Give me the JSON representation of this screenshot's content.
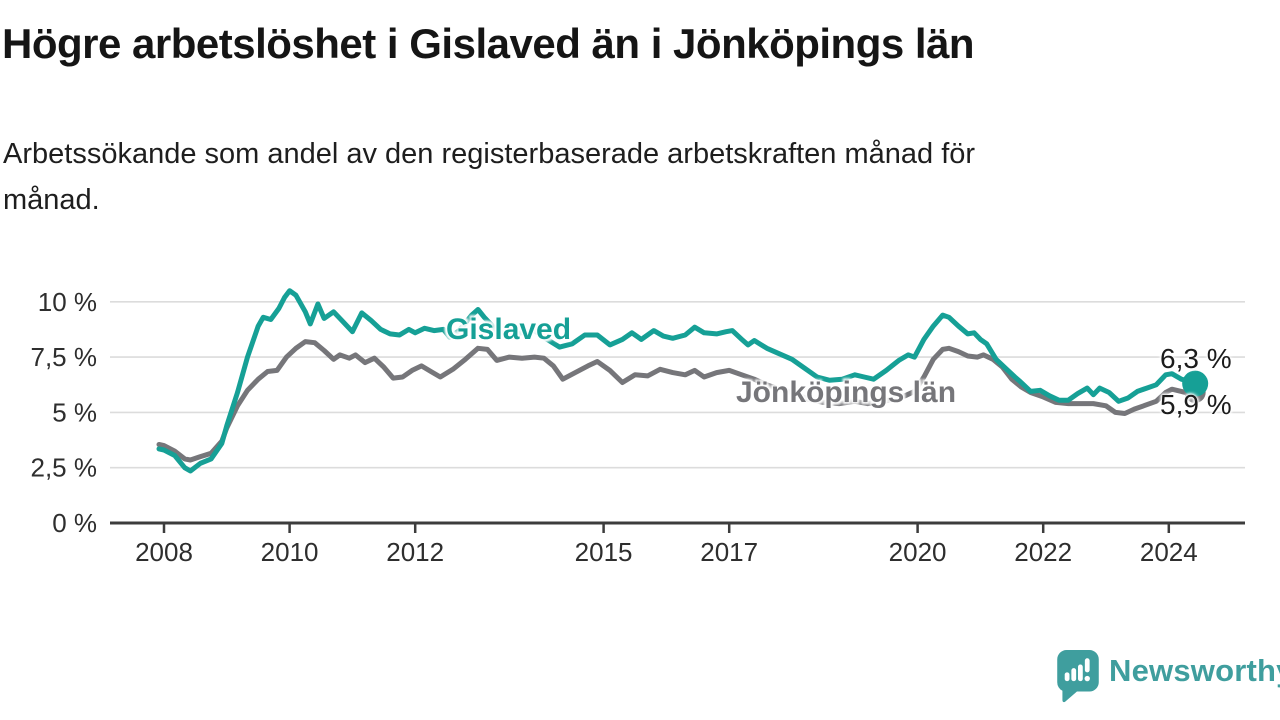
{
  "title": "Högre arbetslöshet i Gislaved än i Jönköpings län",
  "subtitle_lines": {
    "line1": "Arbetssökande som andel av den registerbaserade arbetskraften månad för",
    "line2": "månad."
  },
  "logo": {
    "text": "Newsworthy",
    "color": "#3f9e9e",
    "icon": "speech-bubble-bar-chart"
  },
  "chart_data": {
    "type": "line",
    "title": "Högre arbetslöshet i Gislaved än i Jönköpings län",
    "xlabel": "",
    "ylabel": "Arbetssökande som andel av den registerbaserade arbetskraften (%)",
    "ylim": [
      0,
      10.5
    ],
    "grid": "horizontal",
    "legend_position": "inline-labels",
    "colors": {
      "grid": "#dcdcdc",
      "axis": "#3c3c3c",
      "tick_text": "#2e2e2e"
    },
    "y_axis": {
      "ticks": [
        {
          "v": 0,
          "label": "0 %"
        },
        {
          "v": 2.5,
          "label": "2,5 %"
        },
        {
          "v": 5,
          "label": "5 %"
        },
        {
          "v": 7.5,
          "label": "7,5 %"
        },
        {
          "v": 10,
          "label": "10 %"
        }
      ]
    },
    "x_axis": {
      "ticks": [
        {
          "v": 2008,
          "label": "2008"
        },
        {
          "v": 2010,
          "label": "2010"
        },
        {
          "v": 2012,
          "label": "2012"
        },
        {
          "v": 2015,
          "label": "2015"
        },
        {
          "v": 2017,
          "label": "2017"
        },
        {
          "v": 2020,
          "label": "2020"
        },
        {
          "v": 2022,
          "label": "2022"
        },
        {
          "v": 2024,
          "label": "2024"
        }
      ]
    },
    "series": [
      {
        "name": "Gislaved",
        "label_text": "Gislaved",
        "end_label": "6,3 %",
        "end_value": 6.3,
        "color": "#16a096",
        "dot_radius": 13,
        "points": [
          [
            2007.92,
            3.35
          ],
          [
            2008.0,
            3.3
          ],
          [
            2008.17,
            3.05
          ],
          [
            2008.33,
            2.5
          ],
          [
            2008.42,
            2.35
          ],
          [
            2008.58,
            2.7
          ],
          [
            2008.75,
            2.9
          ],
          [
            2008.92,
            3.6
          ],
          [
            2009.0,
            4.4
          ],
          [
            2009.17,
            5.9
          ],
          [
            2009.33,
            7.5
          ],
          [
            2009.5,
            8.9
          ],
          [
            2009.58,
            9.3
          ],
          [
            2009.7,
            9.2
          ],
          [
            2009.83,
            9.7
          ],
          [
            2009.92,
            10.2
          ],
          [
            2010.0,
            10.5
          ],
          [
            2010.1,
            10.3
          ],
          [
            2010.25,
            9.55
          ],
          [
            2010.33,
            9.0
          ],
          [
            2010.45,
            9.9
          ],
          [
            2010.55,
            9.25
          ],
          [
            2010.7,
            9.55
          ],
          [
            2010.85,
            9.1
          ],
          [
            2011.0,
            8.65
          ],
          [
            2011.15,
            9.5
          ],
          [
            2011.3,
            9.15
          ],
          [
            2011.45,
            8.75
          ],
          [
            2011.6,
            8.55
          ],
          [
            2011.75,
            8.5
          ],
          [
            2011.9,
            8.75
          ],
          [
            2012.0,
            8.6
          ],
          [
            2012.15,
            8.8
          ],
          [
            2012.3,
            8.7
          ],
          [
            2012.45,
            8.75
          ],
          [
            2012.55,
            8.4
          ],
          [
            2012.7,
            8.7
          ],
          [
            2012.9,
            9.4
          ],
          [
            2013.0,
            9.65
          ],
          [
            2013.1,
            9.3
          ],
          [
            2013.3,
            8.7
          ],
          [
            2013.5,
            8.5
          ],
          [
            2013.7,
            8.6
          ],
          [
            2013.9,
            8.7
          ],
          [
            2014.1,
            8.3
          ],
          [
            2014.3,
            7.95
          ],
          [
            2014.5,
            8.1
          ],
          [
            2014.7,
            8.5
          ],
          [
            2014.9,
            8.5
          ],
          [
            2015.1,
            8.05
          ],
          [
            2015.3,
            8.3
          ],
          [
            2015.45,
            8.6
          ],
          [
            2015.6,
            8.3
          ],
          [
            2015.8,
            8.7
          ],
          [
            2015.95,
            8.45
          ],
          [
            2016.1,
            8.35
          ],
          [
            2016.3,
            8.5
          ],
          [
            2016.45,
            8.85
          ],
          [
            2016.6,
            8.6
          ],
          [
            2016.8,
            8.55
          ],
          [
            2016.95,
            8.65
          ],
          [
            2017.05,
            8.7
          ],
          [
            2017.2,
            8.3
          ],
          [
            2017.3,
            8.05
          ],
          [
            2017.4,
            8.25
          ],
          [
            2017.6,
            7.9
          ],
          [
            2017.8,
            7.65
          ],
          [
            2018.0,
            7.4
          ],
          [
            2018.2,
            7.0
          ],
          [
            2018.4,
            6.6
          ],
          [
            2018.6,
            6.45
          ],
          [
            2018.8,
            6.5
          ],
          [
            2019.0,
            6.7
          ],
          [
            2019.15,
            6.6
          ],
          [
            2019.3,
            6.5
          ],
          [
            2019.5,
            6.9
          ],
          [
            2019.7,
            7.35
          ],
          [
            2019.85,
            7.6
          ],
          [
            2019.95,
            7.5
          ],
          [
            2020.1,
            8.3
          ],
          [
            2020.25,
            8.9
          ],
          [
            2020.4,
            9.4
          ],
          [
            2020.5,
            9.3
          ],
          [
            2020.65,
            8.9
          ],
          [
            2020.8,
            8.55
          ],
          [
            2020.9,
            8.6
          ],
          [
            2021.0,
            8.3
          ],
          [
            2021.1,
            8.1
          ],
          [
            2021.25,
            7.4
          ],
          [
            2021.4,
            7.0
          ],
          [
            2021.55,
            6.6
          ],
          [
            2021.63,
            6.4
          ],
          [
            2021.8,
            5.95
          ],
          [
            2021.95,
            6.0
          ],
          [
            2022.1,
            5.75
          ],
          [
            2022.25,
            5.55
          ],
          [
            2022.4,
            5.55
          ],
          [
            2022.55,
            5.85
          ],
          [
            2022.7,
            6.1
          ],
          [
            2022.8,
            5.8
          ],
          [
            2022.9,
            6.1
          ],
          [
            2023.05,
            5.9
          ],
          [
            2023.2,
            5.5
          ],
          [
            2023.35,
            5.65
          ],
          [
            2023.5,
            5.95
          ],
          [
            2023.65,
            6.1
          ],
          [
            2023.8,
            6.25
          ],
          [
            2023.95,
            6.7
          ],
          [
            2024.05,
            6.75
          ],
          [
            2024.2,
            6.5
          ],
          [
            2024.33,
            6.4
          ],
          [
            2024.42,
            6.3
          ]
        ]
      },
      {
        "name": "Jönköpings län",
        "label_text": "Jönköpings län",
        "end_label": "5,9 %",
        "end_value": 5.9,
        "color": "#76767a",
        "dot_radius": 10.5,
        "points": [
          [
            2007.92,
            3.55
          ],
          [
            2008.0,
            3.5
          ],
          [
            2008.17,
            3.25
          ],
          [
            2008.33,
            2.9
          ],
          [
            2008.42,
            2.85
          ],
          [
            2008.58,
            3.0
          ],
          [
            2008.75,
            3.15
          ],
          [
            2008.92,
            3.7
          ],
          [
            2009.0,
            4.3
          ],
          [
            2009.17,
            5.3
          ],
          [
            2009.33,
            6.0
          ],
          [
            2009.5,
            6.5
          ],
          [
            2009.65,
            6.85
          ],
          [
            2009.8,
            6.9
          ],
          [
            2009.95,
            7.5
          ],
          [
            2010.1,
            7.9
          ],
          [
            2010.25,
            8.2
          ],
          [
            2010.4,
            8.15
          ],
          [
            2010.55,
            7.8
          ],
          [
            2010.7,
            7.4
          ],
          [
            2010.8,
            7.6
          ],
          [
            2010.95,
            7.45
          ],
          [
            2011.05,
            7.6
          ],
          [
            2011.2,
            7.25
          ],
          [
            2011.35,
            7.45
          ],
          [
            2011.5,
            7.05
          ],
          [
            2011.65,
            6.55
          ],
          [
            2011.8,
            6.6
          ],
          [
            2011.95,
            6.9
          ],
          [
            2012.1,
            7.1
          ],
          [
            2012.25,
            6.85
          ],
          [
            2012.4,
            6.6
          ],
          [
            2012.6,
            6.95
          ],
          [
            2012.8,
            7.4
          ],
          [
            2013.0,
            7.9
          ],
          [
            2013.15,
            7.85
          ],
          [
            2013.3,
            7.35
          ],
          [
            2013.5,
            7.5
          ],
          [
            2013.7,
            7.45
          ],
          [
            2013.9,
            7.5
          ],
          [
            2014.05,
            7.45
          ],
          [
            2014.2,
            7.1
          ],
          [
            2014.35,
            6.5
          ],
          [
            2014.55,
            6.8
          ],
          [
            2014.75,
            7.1
          ],
          [
            2014.9,
            7.3
          ],
          [
            2015.1,
            6.9
          ],
          [
            2015.3,
            6.35
          ],
          [
            2015.5,
            6.7
          ],
          [
            2015.7,
            6.65
          ],
          [
            2015.9,
            6.95
          ],
          [
            2016.1,
            6.8
          ],
          [
            2016.3,
            6.7
          ],
          [
            2016.45,
            6.9
          ],
          [
            2016.6,
            6.6
          ],
          [
            2016.8,
            6.8
          ],
          [
            2017.0,
            6.9
          ],
          [
            2017.2,
            6.7
          ],
          [
            2017.4,
            6.5
          ],
          [
            2017.6,
            6.25
          ],
          [
            2017.8,
            6.05
          ],
          [
            2018.0,
            5.9
          ],
          [
            2018.25,
            5.6
          ],
          [
            2018.5,
            5.45
          ],
          [
            2018.75,
            5.4
          ],
          [
            2019.0,
            5.5
          ],
          [
            2019.2,
            5.4
          ],
          [
            2019.4,
            5.45
          ],
          [
            2019.6,
            5.6
          ],
          [
            2019.8,
            5.75
          ],
          [
            2019.95,
            5.95
          ],
          [
            2020.1,
            6.6
          ],
          [
            2020.25,
            7.4
          ],
          [
            2020.4,
            7.85
          ],
          [
            2020.5,
            7.9
          ],
          [
            2020.65,
            7.75
          ],
          [
            2020.8,
            7.55
          ],
          [
            2020.95,
            7.5
          ],
          [
            2021.05,
            7.6
          ],
          [
            2021.2,
            7.4
          ],
          [
            2021.35,
            7.05
          ],
          [
            2021.5,
            6.5
          ],
          [
            2021.65,
            6.15
          ],
          [
            2021.8,
            5.9
          ],
          [
            2022.0,
            5.7
          ],
          [
            2022.2,
            5.45
          ],
          [
            2022.4,
            5.4
          ],
          [
            2022.6,
            5.4
          ],
          [
            2022.8,
            5.4
          ],
          [
            2023.0,
            5.3
          ],
          [
            2023.15,
            5.0
          ],
          [
            2023.3,
            4.95
          ],
          [
            2023.45,
            5.15
          ],
          [
            2023.6,
            5.3
          ],
          [
            2023.8,
            5.5
          ],
          [
            2023.95,
            5.9
          ],
          [
            2024.05,
            6.05
          ],
          [
            2024.2,
            5.95
          ],
          [
            2024.33,
            5.85
          ],
          [
            2024.42,
            5.9
          ]
        ]
      }
    ]
  }
}
